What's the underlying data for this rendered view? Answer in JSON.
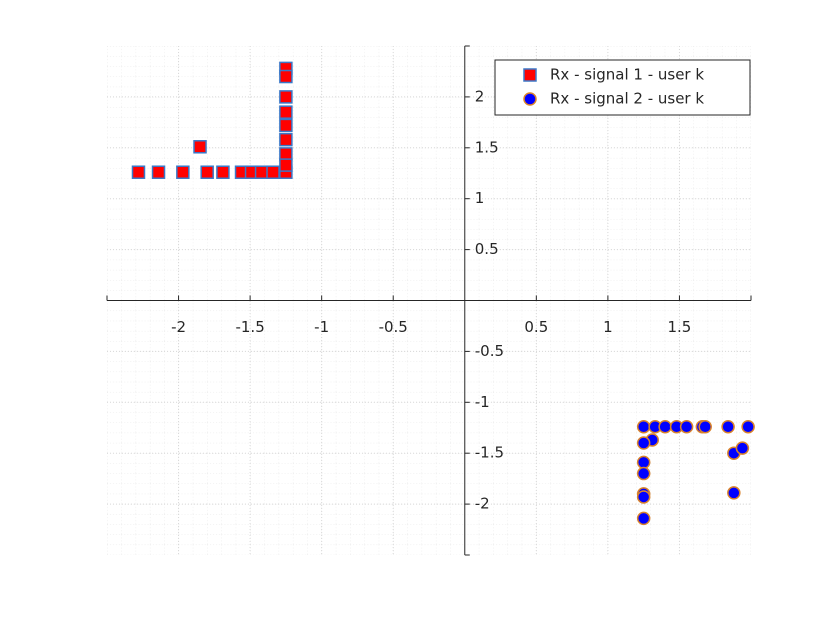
{
  "chart_data": {
    "type": "scatter",
    "xlim": [
      -2.5,
      2
    ],
    "ylim": [
      -2.5,
      2.5
    ],
    "xticks": [
      -2,
      -1.5,
      -1,
      -0.5,
      0.5,
      1,
      1.5
    ],
    "yticks": [
      -2,
      -1.5,
      -1,
      -0.5,
      0.5,
      1,
      1.5,
      2
    ],
    "grid": true,
    "minor_grid": true,
    "legend": "northeast",
    "series": [
      {
        "name": "Rx - signal 1 - user k",
        "marker": "square",
        "color": "#ff0000",
        "edgecolor": "#3a78c8",
        "x": [
          -2.28,
          -2.14,
          -1.97,
          -1.85,
          -1.8,
          -1.69,
          -1.56,
          -1.49,
          -1.42,
          -1.34,
          -1.25,
          -1.25,
          -1.25,
          -1.25,
          -1.25,
          -1.25,
          -1.25,
          -1.25,
          -1.25
        ],
        "values": [
          1.26,
          1.26,
          1.26,
          1.51,
          1.26,
          1.26,
          1.26,
          1.26,
          1.26,
          1.26,
          1.26,
          2.28,
          2.2,
          2.0,
          1.85,
          1.72,
          1.58,
          1.44,
          1.33
        ]
      },
      {
        "name": "Rx - signal 2 - user k",
        "marker": "circle",
        "color": "#0000ff",
        "edgecolor": "#d9822b",
        "x": [
          1.25,
          1.33,
          1.4,
          1.48,
          1.55,
          1.66,
          1.68,
          1.84,
          1.98,
          1.31,
          1.25,
          1.25,
          1.25,
          1.25,
          1.25,
          1.25,
          1.88,
          1.94,
          1.88
        ],
        "values": [
          -1.24,
          -1.24,
          -1.24,
          -1.24,
          -1.24,
          -1.24,
          -1.24,
          -1.24,
          -1.24,
          -1.37,
          -1.4,
          -1.59,
          -1.7,
          -1.9,
          -1.93,
          -2.14,
          -1.5,
          -1.45,
          -1.89
        ]
      }
    ]
  }
}
